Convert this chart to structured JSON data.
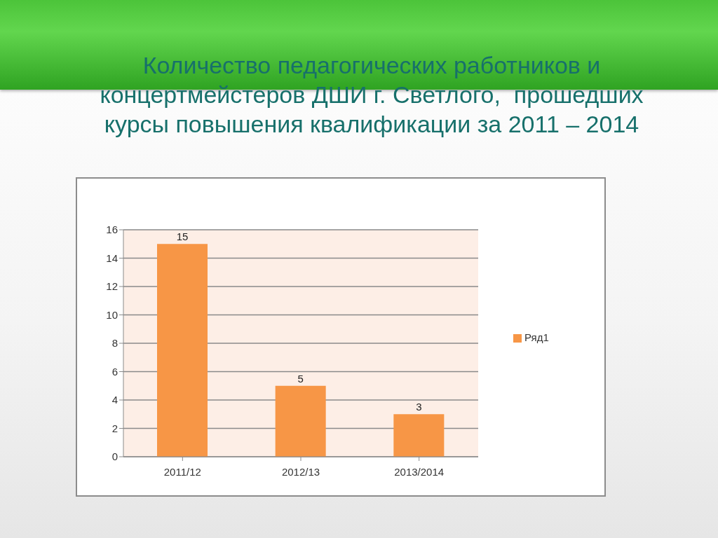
{
  "chart_data": {
    "type": "bar",
    "title": "Количество педагогических работников и концертмейстеров ДШИ г. Светлого,  прошедших курсы повышения квалификации за 2011 – 2014",
    "categories": [
      "2011/12",
      "2012/13",
      "2013/2014"
    ],
    "series": [
      {
        "name": "Ряд1",
        "color": "#f79646",
        "values": [
          15,
          5,
          3
        ]
      }
    ],
    "ylim": [
      0,
      16
    ],
    "yticks": [
      0,
      2,
      4,
      6,
      8,
      10,
      12,
      14,
      16
    ],
    "grid": "y",
    "legend": "right",
    "data_labels": true
  }
}
